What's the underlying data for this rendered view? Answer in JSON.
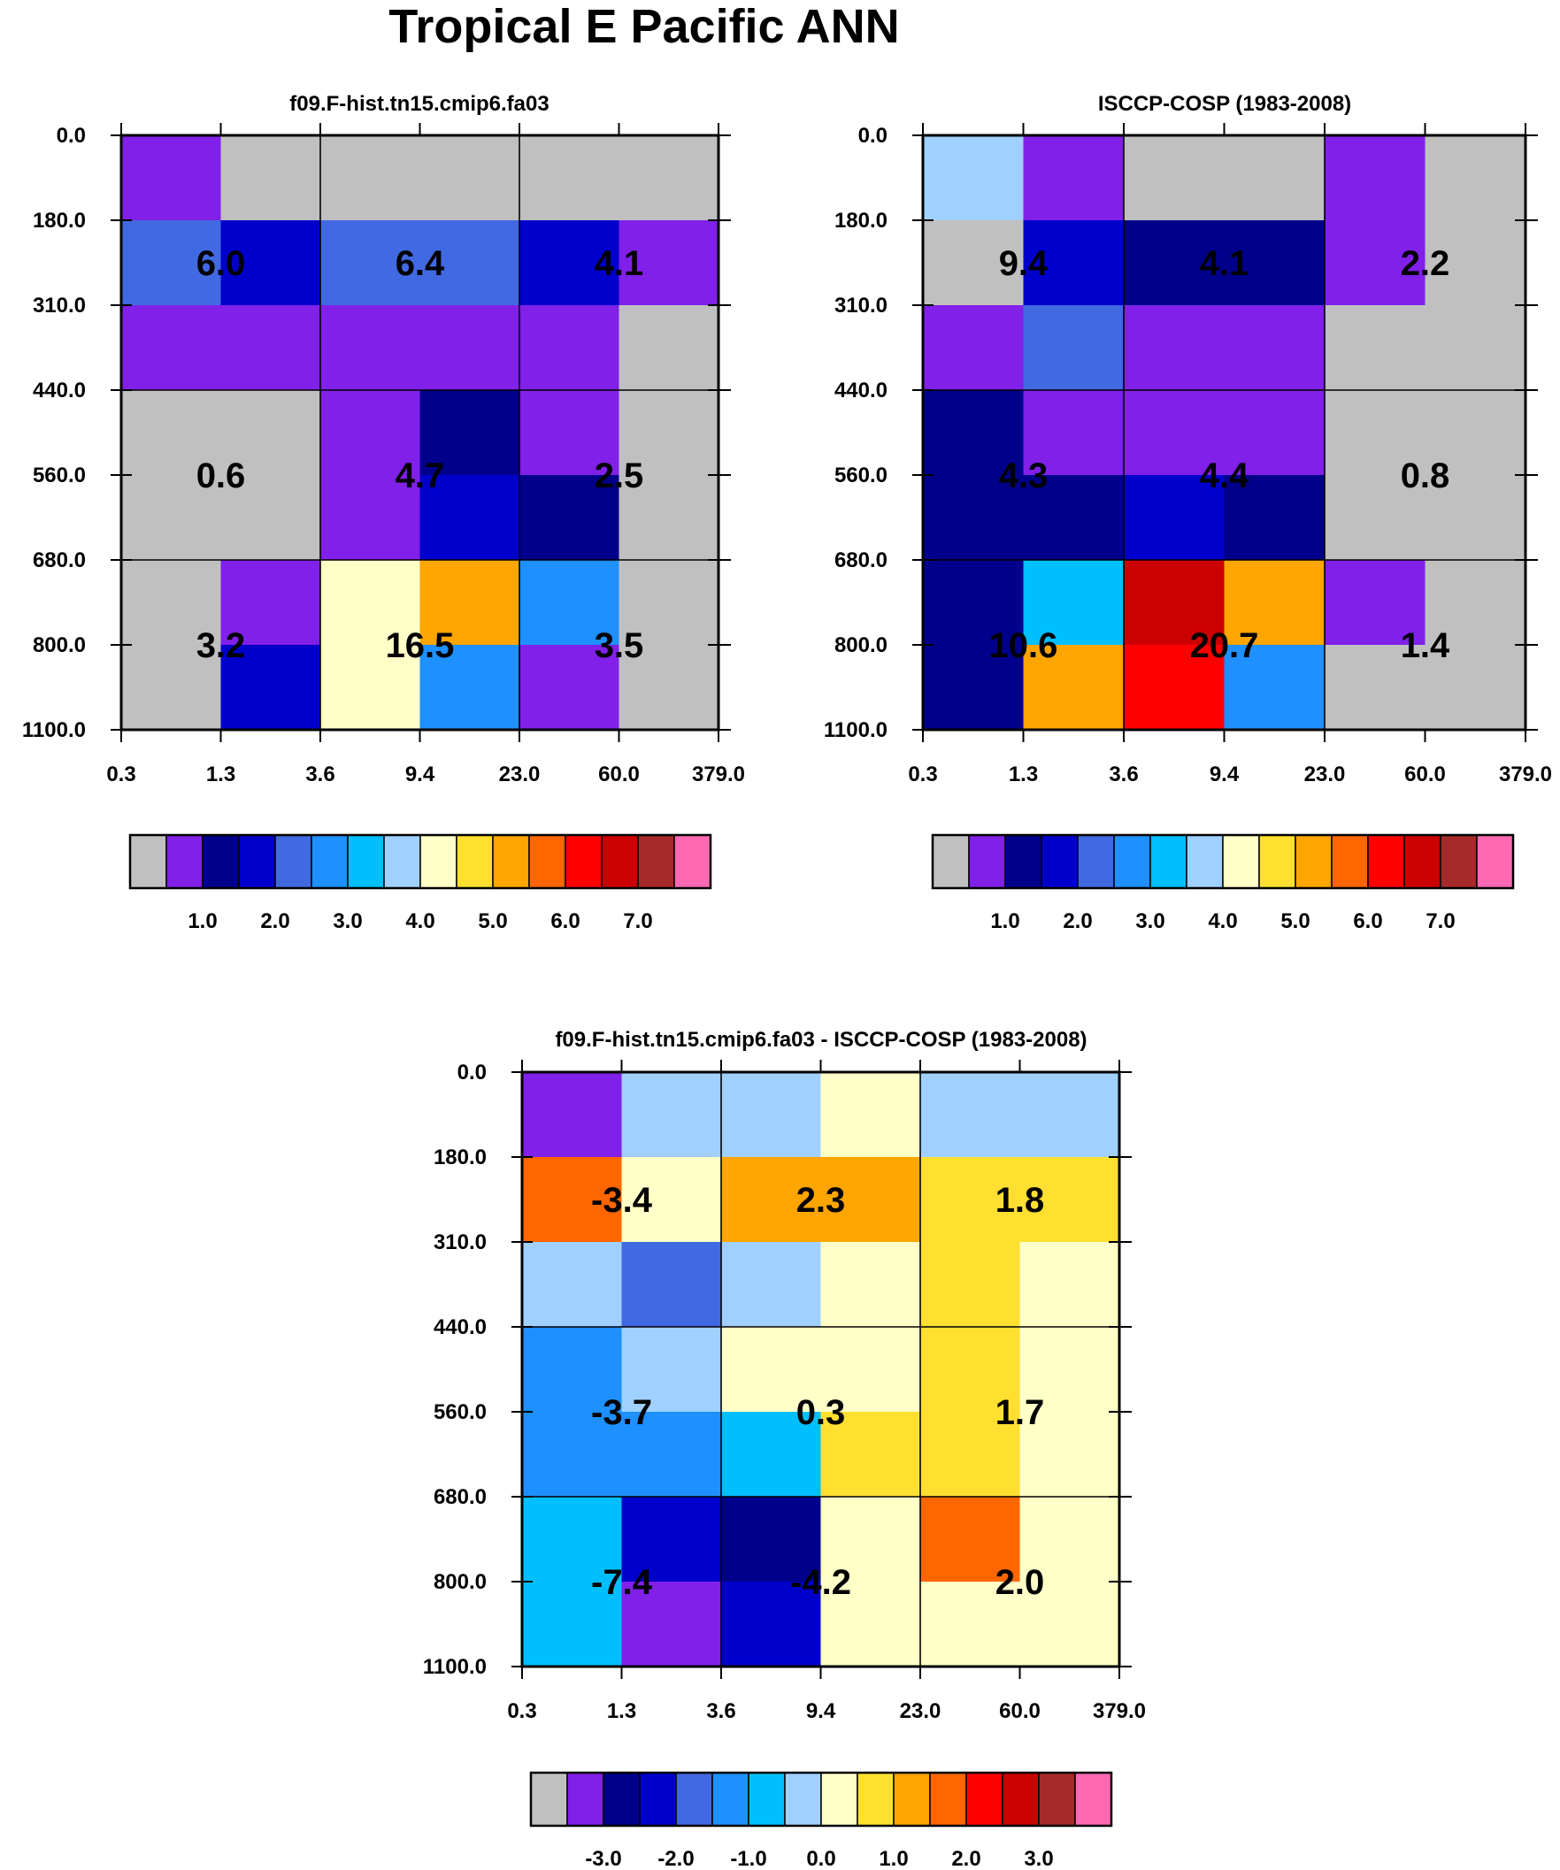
{
  "figure": {
    "title": "Tropical E Pacific ANN"
  },
  "palette": [
    "#c0c0c0",
    "#8020e8",
    "#00008b",
    "#0000cd",
    "#4169e1",
    "#1e90ff",
    "#00bfff",
    "#a0d0ff",
    "#ffffc8",
    "#ffe030",
    "#ffa500",
    "#ff6600",
    "#ff0000",
    "#cc0000",
    "#a52a2a",
    "#ff69b4"
  ],
  "chart_data": [
    {
      "type": "heatmap",
      "title": "f09.F-hist.tn15.cmip6.fa03",
      "xlabel": "",
      "ylabel": "",
      "x_ticks": [
        "0.3",
        "1.3",
        "3.6",
        "9.4",
        "23.0",
        "60.0",
        "379.0"
      ],
      "y_ticks": [
        "0.0",
        "180.0",
        "310.0",
        "440.0",
        "560.0",
        "680.0",
        "800.0",
        "1100.0"
      ],
      "cell_color_index": [
        [
          1,
          0,
          0,
          0,
          0,
          0
        ],
        [
          4,
          3,
          4,
          4,
          3,
          1
        ],
        [
          1,
          1,
          1,
          1,
          1,
          0
        ],
        [
          0,
          0,
          1,
          2,
          1,
          0
        ],
        [
          0,
          0,
          1,
          3,
          2,
          0
        ],
        [
          0,
          1,
          8,
          10,
          5,
          0
        ],
        [
          0,
          3,
          8,
          5,
          1,
          0
        ]
      ],
      "box_values": [
        [
          "6.0",
          "6.4",
          "4.1"
        ],
        [
          "0.6",
          "4.7",
          "2.5"
        ],
        [
          "3.2",
          "16.5",
          "3.5"
        ]
      ],
      "colorbar": {
        "ticks": [
          "1.0",
          "2.0",
          "3.0",
          "4.0",
          "5.0",
          "6.0",
          "7.0"
        ]
      }
    },
    {
      "type": "heatmap",
      "title": "ISCCP-COSP (1983-2008)",
      "xlabel": "",
      "ylabel": "",
      "x_ticks": [
        "0.3",
        "1.3",
        "3.6",
        "9.4",
        "23.0",
        "60.0",
        "379.0"
      ],
      "y_ticks": [
        "0.0",
        "180.0",
        "310.0",
        "440.0",
        "560.0",
        "680.0",
        "800.0",
        "1100.0"
      ],
      "cell_color_index": [
        [
          7,
          1,
          0,
          0,
          1,
          0
        ],
        [
          0,
          3,
          2,
          2,
          1,
          0
        ],
        [
          1,
          4,
          1,
          1,
          0,
          0
        ],
        [
          2,
          1,
          1,
          1,
          0,
          0
        ],
        [
          2,
          2,
          3,
          2,
          0,
          0
        ],
        [
          2,
          6,
          13,
          10,
          1,
          0
        ],
        [
          2,
          10,
          12,
          5,
          0,
          0
        ]
      ],
      "box_values": [
        [
          "9.4",
          "4.1",
          "2.2"
        ],
        [
          "4.3",
          "4.4",
          "0.8"
        ],
        [
          "10.6",
          "20.7",
          "1.4"
        ]
      ],
      "colorbar": {
        "ticks": [
          "1.0",
          "2.0",
          "3.0",
          "4.0",
          "5.0",
          "6.0",
          "7.0"
        ]
      }
    },
    {
      "type": "heatmap",
      "title": "f09.F-hist.tn15.cmip6.fa03 - ISCCP-COSP (1983-2008)",
      "xlabel": "",
      "ylabel": "",
      "x_ticks": [
        "0.3",
        "1.3",
        "3.6",
        "9.4",
        "23.0",
        "60.0",
        "379.0"
      ],
      "y_ticks": [
        "0.0",
        "180.0",
        "310.0",
        "440.0",
        "560.0",
        "680.0",
        "800.0",
        "1100.0"
      ],
      "cell_color_index": [
        [
          1,
          7,
          7,
          8,
          7,
          7
        ],
        [
          11,
          8,
          10,
          10,
          9,
          9
        ],
        [
          7,
          4,
          7,
          8,
          9,
          8
        ],
        [
          5,
          7,
          8,
          8,
          9,
          8
        ],
        [
          5,
          5,
          6,
          9,
          9,
          8
        ],
        [
          6,
          3,
          2,
          8,
          11,
          8
        ],
        [
          6,
          1,
          3,
          8,
          8,
          8
        ]
      ],
      "box_values": [
        [
          "-3.4",
          "2.3",
          "1.8"
        ],
        [
          "-3.7",
          "0.3",
          "1.7"
        ],
        [
          "-7.4",
          "-4.2",
          "2.0"
        ]
      ],
      "colorbar": {
        "ticks": [
          "-3.0",
          "-2.0",
          "-1.0",
          "0.0",
          "1.0",
          "2.0",
          "3.0"
        ]
      }
    }
  ]
}
